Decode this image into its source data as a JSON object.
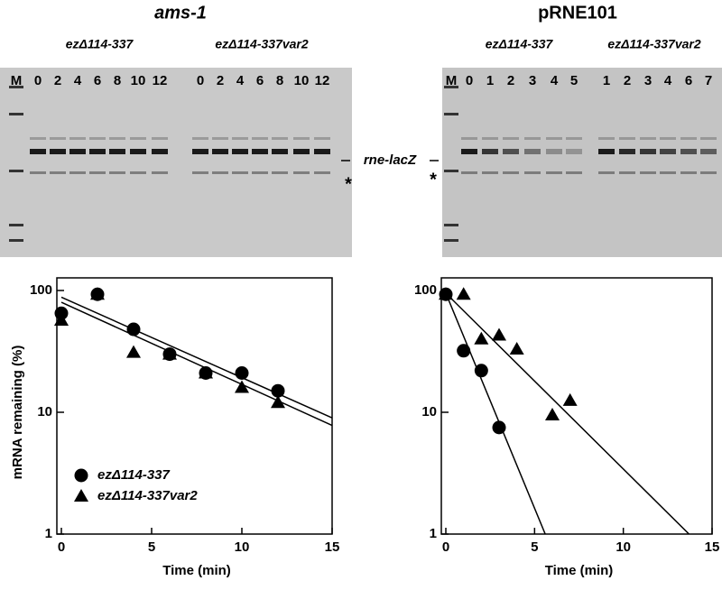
{
  "figure": {
    "panels": [
      {
        "title": "ams-1",
        "marker_lane": "M",
        "groups": [
          {
            "label": "ezΔ114-337",
            "lanes": [
              0,
              2,
              4,
              6,
              8,
              10,
              12
            ]
          },
          {
            "label": "ezΔ114-337var2",
            "lanes": [
              0,
              2,
              4,
              6,
              8,
              10,
              12
            ]
          }
        ],
        "band_label": "rne-lacZ",
        "asterisk": "*"
      },
      {
        "title": "pRNE101",
        "marker_lane": "M",
        "groups": [
          {
            "label": "ezΔ114-337",
            "lanes": [
              0,
              1,
              2,
              3,
              4,
              5
            ]
          },
          {
            "label": "ezΔ114-337var2",
            "lanes": [
              1,
              2,
              3,
              4,
              6,
              7
            ]
          }
        ],
        "asterisk": "*"
      }
    ]
  },
  "chart_data": [
    {
      "type": "scatter",
      "xlabel": "Time (min)",
      "ylabel": "mRNA remaining (%)",
      "log_y": true,
      "xlim": [
        0,
        15
      ],
      "xticks": [
        0,
        5,
        10,
        15
      ],
      "ylim": [
        1,
        100
      ],
      "yticks": [
        1,
        10,
        100
      ],
      "legend": "lower left",
      "series": [
        {
          "name": "ezΔ114-337",
          "marker": "circle",
          "color": "#000000",
          "x": [
            0,
            2,
            4,
            6,
            8,
            10,
            12
          ],
          "values": [
            65,
            93,
            48,
            30,
            21,
            21,
            15
          ]
        },
        {
          "name": "ezΔ114-337var2",
          "marker": "triangle",
          "color": "#000000",
          "x": [
            0,
            2,
            4,
            6,
            8,
            10,
            12
          ],
          "values": [
            57,
            93,
            31,
            30,
            21,
            16,
            12
          ]
        }
      ],
      "fits": [
        {
          "x": [
            0,
            15
          ],
          "values": [
            88,
            9
          ]
        },
        {
          "x": [
            0,
            15
          ],
          "values": [
            80,
            7.8
          ]
        }
      ]
    },
    {
      "type": "scatter",
      "xlabel": "Time (min)",
      "log_y": true,
      "xlim": [
        0,
        15
      ],
      "xticks": [
        0,
        5,
        10,
        15
      ],
      "ylim": [
        1,
        100
      ],
      "yticks": [
        1,
        10,
        100
      ],
      "series": [
        {
          "marker": "circle",
          "color": "#000000",
          "x": [
            0,
            1,
            2,
            3
          ],
          "values": [
            93,
            32,
            22,
            7.5
          ]
        },
        {
          "marker": "triangle",
          "color": "#000000",
          "x": [
            0,
            1,
            2,
            3,
            4,
            6,
            7
          ],
          "values": [
            93,
            93,
            40,
            43,
            33,
            9.5,
            12.5
          ]
        }
      ],
      "fits": [
        {
          "x": [
            0,
            5.6
          ],
          "values": [
            95,
            1
          ]
        },
        {
          "x": [
            0,
            13.7
          ],
          "values": [
            95,
            1
          ]
        }
      ]
    }
  ]
}
